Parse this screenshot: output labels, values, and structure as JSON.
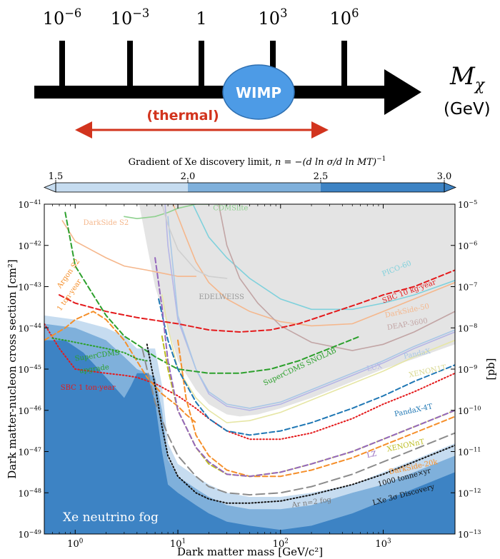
{
  "axis_top": {
    "ticks": [
      {
        "base": "10",
        "exp": "−6"
      },
      {
        "base": "10",
        "exp": "−3"
      },
      {
        "base": "1",
        "exp": ""
      },
      {
        "base": "10",
        "exp": "3"
      },
      {
        "base": "10",
        "exp": "6"
      }
    ],
    "label_symbol": "M",
    "label_sub": "χ",
    "unit": "(GeV)",
    "wimp_label": "WIMP",
    "thermal_label": "(thermal)",
    "colors": {
      "axis": "#000000",
      "wimp_fill": "#4d9be6",
      "thermal": "#d2341e"
    }
  },
  "colorbar": {
    "title_text": "Gradient of Xe discovery limit, ",
    "title_formula": "n = −(d ln σ/d ln MT)",
    "title_exp": "−1",
    "ticks": [
      "1.5",
      "2.0",
      "2.5",
      "3.0"
    ],
    "colors": [
      "#c6dcf0",
      "#7fb0db",
      "#3d83c4"
    ]
  },
  "chart_data": {
    "type": "line",
    "xscale": "log",
    "yscale": "log",
    "xlim": [
      0.5,
      5000
    ],
    "ylim": [
      1e-49,
      1e-41
    ],
    "xlabel": "Dark matter mass [GeV/c²]",
    "ylabel": "Dark matter-nucleon cross section [cm²]",
    "ylabel_right": "[pb]",
    "x_ticks": [
      {
        "v": 1,
        "base": "10",
        "exp": "0"
      },
      {
        "v": 10,
        "base": "10",
        "exp": "1"
      },
      {
        "v": 100,
        "base": "10",
        "exp": "2"
      },
      {
        "v": 1000,
        "base": "10",
        "exp": "3"
      }
    ],
    "y_ticks": [
      {
        "v": -41,
        "base": "10",
        "exp": "−41"
      },
      {
        "v": -42,
        "base": "10",
        "exp": "−42"
      },
      {
        "v": -43,
        "base": "10",
        "exp": "−43"
      },
      {
        "v": -44,
        "base": "10",
        "exp": "−44"
      },
      {
        "v": -45,
        "base": "10",
        "exp": "−45"
      },
      {
        "v": -46,
        "base": "10",
        "exp": "−46"
      },
      {
        "v": -47,
        "base": "10",
        "exp": "−47"
      },
      {
        "v": -48,
        "base": "10",
        "exp": "−48"
      },
      {
        "v": -49,
        "base": "10",
        "exp": "−49"
      }
    ],
    "y_ticks_right": [
      {
        "v": -41,
        "base": "10",
        "exp": "−5"
      },
      {
        "v": -42,
        "base": "10",
        "exp": "−6"
      },
      {
        "v": -43,
        "base": "10",
        "exp": "−7"
      },
      {
        "v": -44,
        "base": "10",
        "exp": "−8"
      },
      {
        "v": -45,
        "base": "10",
        "exp": "−9"
      },
      {
        "v": -46,
        "base": "10",
        "exp": "−10"
      },
      {
        "v": -47,
        "base": "10",
        "exp": "−11"
      },
      {
        "v": -48,
        "base": "10",
        "exp": "−12"
      },
      {
        "v": -49,
        "base": "10",
        "exp": "−13"
      }
    ],
    "excluded_region": {
      "color": "#e4e4e4",
      "x": [
        4.2,
        5,
        6,
        8,
        10,
        15,
        20,
        30,
        40,
        60,
        100,
        200,
        400,
        1000,
        2000,
        5000
      ],
      "y": [
        -41,
        -42,
        -43,
        -44,
        -44.8,
        -45.5,
        -45.85,
        -46.1,
        -46.15,
        -46.1,
        -45.95,
        -45.7,
        -45.4,
        -45.0,
        -44.75,
        -44.4
      ]
    },
    "fog_levels": [
      {
        "color": "#c6dcf0",
        "x": [
          0.5,
          1,
          2,
          3,
          4,
          5,
          6,
          7,
          8,
          10,
          15,
          20,
          30,
          50,
          100,
          200,
          500,
          1000,
          2000,
          5000
        ],
        "y": [
          -43.7,
          -43.8,
          -44.0,
          -44.2,
          -44.5,
          -44.5,
          -44.5,
          -45.4,
          -46.8,
          -47.3,
          -47.6,
          -47.8,
          -48.0,
          -48.1,
          -48.1,
          -48.0,
          -47.8,
          -47.5,
          -47.2,
          -46.8
        ]
      },
      {
        "color": "#7fb0db",
        "x": [
          0.5,
          1,
          2,
          3,
          4,
          5,
          6,
          7,
          8,
          10,
          15,
          20,
          30,
          50,
          100,
          200,
          500,
          1000,
          2000,
          5000
        ],
        "y": [
          -43.9,
          -44.0,
          -44.3,
          -44.7,
          -45.0,
          -45.1,
          -45.2,
          -46.0,
          -47.2,
          -47.6,
          -47.9,
          -48.1,
          -48.3,
          -48.4,
          -48.4,
          -48.3,
          -48.0,
          -47.8,
          -47.5,
          -47.1
        ]
      },
      {
        "color": "#3d83c4",
        "x": [
          0.5,
          0.8,
          1.2,
          2,
          3,
          3.5,
          4,
          5,
          6,
          7,
          8,
          10,
          15,
          20,
          30,
          50,
          100,
          200,
          500,
          1000,
          2000,
          5000
        ],
        "y": [
          -44.3,
          -44.3,
          -44.6,
          -45.2,
          -45.7,
          -45.4,
          -45.1,
          -45.1,
          -45.8,
          -47.0,
          -47.8,
          -48.0,
          -48.3,
          -48.5,
          -48.7,
          -48.8,
          -48.9,
          -48.8,
          -48.5,
          -48.2,
          -47.9,
          -47.5
        ]
      }
    ],
    "fog_label": "Xe neutrino fog",
    "series": [
      {
        "name": "PICO-60",
        "color": "#7fd1dc",
        "dash": "solid",
        "x": [
          14,
          20,
          30,
          50,
          100,
          200,
          500,
          1000,
          2000,
          5000
        ],
        "y": [
          -41,
          -41.8,
          -42.3,
          -42.8,
          -43.3,
          -43.55,
          -43.55,
          -43.4,
          -43.2,
          -42.85
        ]
      },
      {
        "name": "DarkSide-50",
        "color": "#f5b78c",
        "dash": "solid",
        "x": [
          9,
          12,
          15,
          20,
          30,
          50,
          100,
          200,
          500,
          1000,
          2000,
          5000
        ],
        "y": [
          -41,
          -41.8,
          -42.4,
          -42.9,
          -43.3,
          -43.6,
          -43.85,
          -43.95,
          -43.9,
          -43.6,
          -43.3,
          -42.9
        ]
      },
      {
        "name": "DEAP-3600",
        "color": "#c2a5a5",
        "dash": "solid",
        "x": [
          25,
          30,
          40,
          60,
          100,
          200,
          500,
          1000,
          2000,
          5000
        ],
        "y": [
          -41,
          -42.0,
          -42.8,
          -43.4,
          -43.95,
          -44.35,
          -44.55,
          -44.4,
          -44.1,
          -43.6
        ]
      },
      {
        "name": "",
        "color": "#f5b78c",
        "dash": "solid",
        "x": [
          0.75,
          1,
          2,
          3,
          5,
          8,
          10,
          15
        ],
        "y": [
          -41.4,
          -41.9,
          -42.3,
          -42.5,
          -42.6,
          -42.7,
          -42.75,
          -42.75
        ]
      },
      {
        "name": "CDMSlite",
        "color": "#8fd18f",
        "dash": "solid",
        "x": [
          3,
          4,
          6,
          8,
          10,
          15,
          20
        ],
        "y": [
          -41.3,
          -41.35,
          -41.3,
          -41.2,
          -41.1,
          -41.0,
          -41.0
        ]
      },
      {
        "name": "LUX",
        "color": "#b6b6e6",
        "dash": "solid",
        "x": [
          7.5,
          8,
          10,
          15,
          20,
          30,
          50,
          100,
          200,
          500,
          1000,
          2000,
          5000
        ],
        "y": [
          -41,
          -42.0,
          -43.8,
          -45.0,
          -45.6,
          -45.9,
          -46.0,
          -45.85,
          -45.55,
          -45.15,
          -44.85,
          -44.5,
          -44.1
        ]
      },
      {
        "name": "PandaX",
        "color": "#a9c7e6",
        "dash": "solid",
        "x": [
          8,
          10,
          15,
          20,
          30,
          50,
          100,
          200,
          500,
          1000,
          2000,
          5000
        ],
        "y": [
          -41.3,
          -43.7,
          -45.0,
          -45.55,
          -45.85,
          -45.95,
          -45.8,
          -45.5,
          -45.1,
          -44.8,
          -44.45,
          -44.05
        ]
      },
      {
        "name": "XENON1T",
        "color": "#e6e6a5",
        "dash": "solid",
        "x": [
          7,
          8,
          10,
          15,
          20,
          30,
          50,
          100,
          200,
          500,
          1000,
          2000,
          5000
        ],
        "y": [
          -43.2,
          -44.0,
          -45.0,
          -45.7,
          -46.0,
          -46.3,
          -46.25,
          -46.05,
          -45.75,
          -45.35,
          -45.05,
          -44.7,
          -44.3
        ]
      },
      {
        "name": "EDELWEISS",
        "color": "#cfcfcf",
        "dash": "solid",
        "x": [
          7,
          8,
          10,
          15,
          20,
          30
        ],
        "y": [
          -41,
          -41.5,
          -42.1,
          -42.6,
          -42.75,
          -42.8
        ]
      },
      {
        "name": "SBC 10 kg·year",
        "color": "#e41a1c",
        "dash": "dash",
        "x": [
          0.7,
          1,
          2,
          4,
          10,
          20,
          40,
          80,
          150,
          300,
          600,
          1000,
          2000,
          5000
        ],
        "y": [
          -43.2,
          -43.4,
          -43.6,
          -43.75,
          -43.9,
          -44.05,
          -44.1,
          -44.05,
          -43.9,
          -43.65,
          -43.4,
          -43.2,
          -43.0,
          -42.6
        ]
      },
      {
        "name": "SBC 1 ton·year",
        "color": "#e41a1c",
        "dash": "dot",
        "x": [
          0.5,
          0.7,
          1,
          2,
          3,
          4,
          6,
          10,
          15,
          20,
          30,
          50,
          100,
          200,
          500,
          1000,
          2000,
          5000
        ],
        "y": [
          -43.9,
          -44.5,
          -45.0,
          -45.1,
          -45.15,
          -45.2,
          -45.35,
          -45.65,
          -45.95,
          -46.2,
          -46.5,
          -46.7,
          -46.7,
          -46.55,
          -46.2,
          -45.85,
          -45.55,
          -45.1
        ]
      },
      {
        "name": "DarkSide-20k",
        "color": "#f58f2a",
        "dash": "dash",
        "x": [
          10,
          12,
          15,
          20,
          30,
          50,
          100,
          200,
          500,
          1000,
          2000,
          5000
        ],
        "y": [
          -44.3,
          -45.7,
          -46.6,
          -47.1,
          -47.45,
          -47.6,
          -47.6,
          -47.45,
          -47.15,
          -46.85,
          -46.55,
          -46.15
        ]
      },
      {
        "name": "Argon S2 1 ton·year",
        "color": "#f58f2a",
        "dash": "dash",
        "x": [
          0.5,
          0.8,
          1,
          1.5,
          2,
          3,
          5,
          7,
          10,
          12,
          15
        ],
        "y": [
          -44.3,
          -44.0,
          -43.8,
          -43.6,
          -43.8,
          -44.3,
          -45.2,
          -45.6,
          -45.9,
          -46.1,
          -46.3
        ]
      },
      {
        "name": "SuperCDMS SNOLAB",
        "color": "#2ca02c",
        "dash": "dash",
        "x": [
          0.8,
          1,
          2,
          3,
          4,
          6,
          10,
          20,
          40,
          80,
          150,
          300,
          600
        ],
        "y": [
          -41.2,
          -42.5,
          -43.7,
          -44.2,
          -44.4,
          -44.7,
          -45.0,
          -45.1,
          -45.1,
          -45.0,
          -44.8,
          -44.5,
          -44.2
        ]
      },
      {
        "name": "SuperCDMS upgrade",
        "color": "#2ca02c",
        "dash": "dot",
        "x": [
          0.6,
          0.8,
          1,
          2,
          3,
          4,
          5
        ],
        "y": [
          -44.25,
          -44.3,
          -44.35,
          -44.5,
          -44.6,
          -44.75,
          -44.8
        ]
      },
      {
        "name": "PandaX-4T",
        "color": "#1f77b4",
        "dash": "dash",
        "x": [
          6.5,
          8,
          10,
          15,
          20,
          30,
          50,
          100,
          200,
          500,
          1000,
          2000,
          5000
        ],
        "y": [
          -43.3,
          -44.3,
          -45.0,
          -45.8,
          -46.2,
          -46.5,
          -46.6,
          -46.5,
          -46.3,
          -45.95,
          -45.65,
          -45.3,
          -44.9
        ]
      },
      {
        "name": "XENONnT",
        "color": "#bcbd22",
        "dash": "dash",
        "x": [
          7,
          8,
          10,
          15,
          20,
          30,
          50,
          100,
          200,
          500,
          1000,
          2000,
          5000
        ],
        "y": [
          -44.2,
          -45.0,
          -46.0,
          -46.9,
          -47.3,
          -47.55,
          -47.6,
          -47.5,
          -47.3,
          -47.0,
          -46.7,
          -46.4,
          -46.0
        ]
      },
      {
        "name": "LZ",
        "color": "#9467bd",
        "dash": "dash",
        "x": [
          6,
          7,
          8,
          10,
          15,
          20,
          30,
          50,
          100,
          200,
          500,
          1000,
          2000,
          5000
        ],
        "y": [
          -42.3,
          -43.5,
          -44.8,
          -46.0,
          -46.9,
          -47.25,
          -47.55,
          -47.6,
          -47.5,
          -47.3,
          -47.0,
          -46.7,
          -46.4,
          -46.0
        ]
      },
      {
        "name": "Ar n=2 fog",
        "color": "#8c8c8c",
        "dash": "longdash",
        "x": [
          4.5,
          5,
          6,
          8,
          10,
          15,
          20,
          30,
          50,
          100,
          200,
          500,
          1000,
          2000,
          5000
        ],
        "y": [
          -44.5,
          -45.0,
          -45.8,
          -46.6,
          -47.1,
          -47.6,
          -47.85,
          -48.0,
          -48.05,
          -48.0,
          -47.85,
          -47.55,
          -47.25,
          -46.95,
          -46.55
        ]
      },
      {
        "name": "1000 tonne×yr LXe 3σ Discovery",
        "color": "#111111",
        "dash": "dot",
        "x": [
          5,
          6,
          7,
          8,
          10,
          15,
          20,
          30,
          50,
          100,
          200,
          500,
          1000,
          2000,
          5000
        ],
        "y": [
          -44.4,
          -45.4,
          -46.4,
          -47.1,
          -47.6,
          -48.0,
          -48.15,
          -48.25,
          -48.25,
          -48.2,
          -48.05,
          -47.8,
          -47.55,
          -47.25,
          -46.85
        ]
      }
    ],
    "labels": [
      {
        "text": "DarkSide S2",
        "color": "#f5b78c",
        "x": 1.2,
        "y": -41.5,
        "rot": 0
      },
      {
        "text": "CDMSlite",
        "color": "#8fd18f",
        "x": 22,
        "y": -41.15,
        "rot": 0
      },
      {
        "text": "PICO-60",
        "color": "#7fd1dc",
        "x": 1000,
        "y": -42.75,
        "rot": -22
      },
      {
        "text": "SBC 10 kg·year",
        "color": "#e41a1c",
        "x": 1000,
        "y": -43.4,
        "rot": -20
      },
      {
        "text": "DarkSide-50",
        "color": "#f5b78c",
        "x": 1050,
        "y": -43.75,
        "rot": -12
      },
      {
        "text": "DEAP-3600",
        "color": "#c2a5a5",
        "x": 1100,
        "y": -44.05,
        "rot": -10
      },
      {
        "text": "EDELWEISS",
        "color": "#9a9a9a",
        "x": 16,
        "y": -43.3,
        "rot": 0
      },
      {
        "text": "Argon S2",
        "color": "#f58f2a",
        "x": 0.72,
        "y": -43.05,
        "rot": -55
      },
      {
        "text": "1 ton·year",
        "color": "#f58f2a",
        "x": 0.72,
        "y": -43.6,
        "rot": -55
      },
      {
        "text": "SuperCDMS",
        "color": "#2ca02c",
        "x": 1.0,
        "y": -44.8,
        "rot": -8
      },
      {
        "text": "upgrade",
        "color": "#2ca02c",
        "x": 1.1,
        "y": -45.1,
        "rot": -8
      },
      {
        "text": "SuperCDMS SNOLAB",
        "color": "#2ca02c",
        "x": 70,
        "y": -45.4,
        "rot": -25
      },
      {
        "text": "LUX",
        "color": "#b6b6e6",
        "x": 700,
        "y": -45.05,
        "rot": -12
      },
      {
        "text": "PandaX",
        "color": "#a9c7e6",
        "x": 1600,
        "y": -44.75,
        "rot": -12
      },
      {
        "text": "XENON1T",
        "color": "#d8d890",
        "x": 1800,
        "y": -45.2,
        "rot": -12
      },
      {
        "text": "SBC 1 ton·year",
        "color": "#e41a1c",
        "x": 0.72,
        "y": -45.5,
        "rot": 0
      },
      {
        "text": "PandaX-4T",
        "color": "#1f77b4",
        "x": 1300,
        "y": -46.15,
        "rot": -12
      },
      {
        "text": "LZ",
        "color": "#9467bd",
        "x": 700,
        "y": -47.15,
        "rot": -12
      },
      {
        "text": "XENONnT",
        "color": "#bcbd22",
        "x": 1100,
        "y": -47.0,
        "rot": -12
      },
      {
        "text": "DarkSide-20k",
        "color": "#f58f2a",
        "x": 1150,
        "y": -47.55,
        "rot": -12
      },
      {
        "text": "Ar n=2 fog",
        "color": "#777777",
        "x": 130,
        "y": -48.35,
        "rot": -8
      },
      {
        "text": "1000 tonne×yr",
        "color": "#111111",
        "x": 900,
        "y": -47.85,
        "rot": -15
      },
      {
        "text": "LXe 3σ Discovery",
        "color": "#111111",
        "x": 800,
        "y": -48.3,
        "rot": -15
      }
    ]
  }
}
